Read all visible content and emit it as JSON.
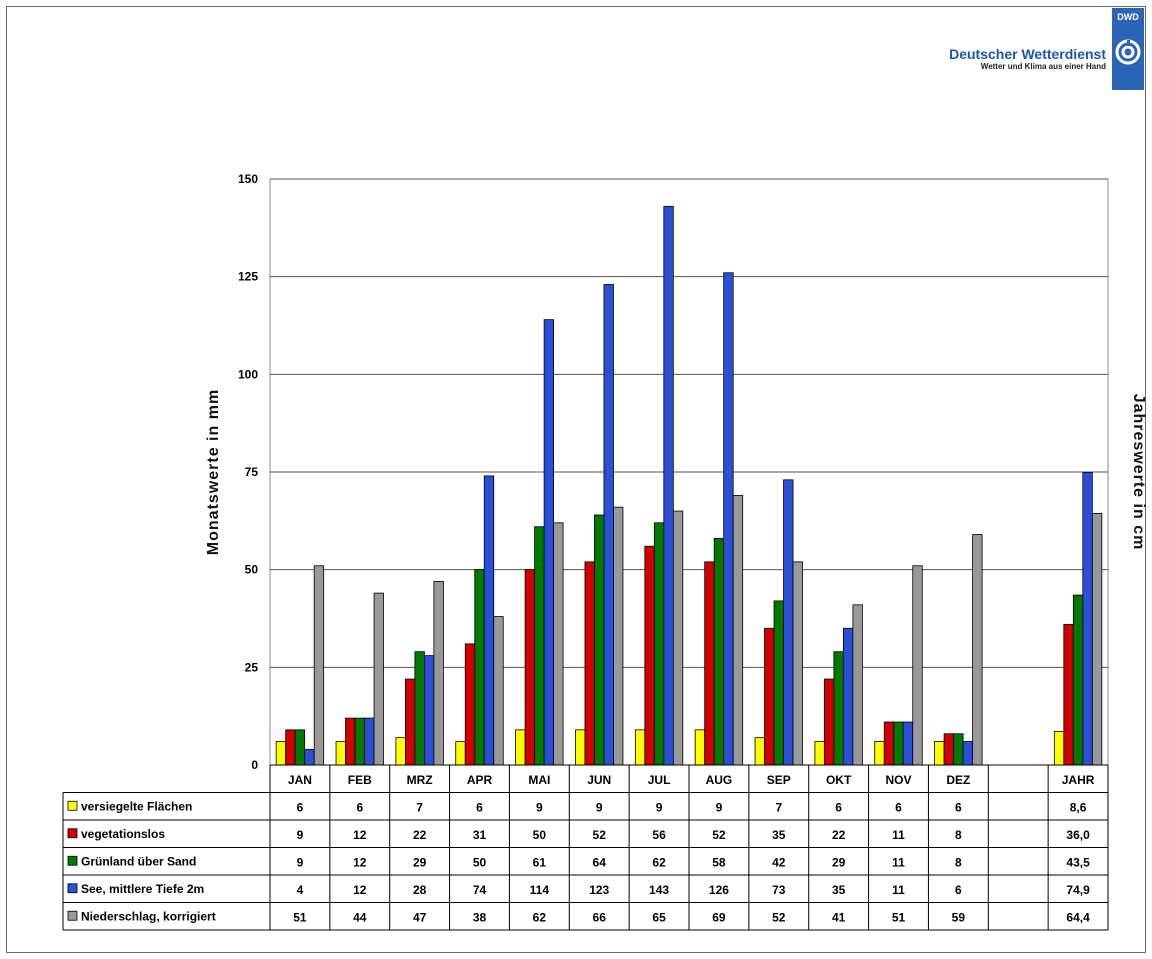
{
  "logo": {
    "abbr": "DWD",
    "title": "Deutscher Wetterdienst",
    "subtitle": "Wetter und Klima aus einer Hand",
    "color": "#2c64b8"
  },
  "chart_data": {
    "type": "bar",
    "title": "",
    "ylabel": "Monatswerte in mm",
    "ylabel_right": "Jahreswerte in cm",
    "ylim": [
      0,
      150
    ],
    "yticks": [
      0,
      25,
      50,
      75,
      100,
      125,
      150
    ],
    "grid": true,
    "categories": [
      "JAN",
      "FEB",
      "MRZ",
      "APR",
      "MAI",
      "JUN",
      "JUL",
      "AUG",
      "SEP",
      "OKT",
      "NOV",
      "DEZ",
      "",
      "JAHR"
    ],
    "series": [
      {
        "name": "versiegelte Flächen",
        "color": "#ffff00",
        "values": [
          6,
          6,
          7,
          6,
          9,
          9,
          9,
          9,
          7,
          6,
          6,
          6,
          null,
          8.6
        ],
        "labels": [
          "6",
          "6",
          "7",
          "6",
          "9",
          "9",
          "9",
          "9",
          "7",
          "6",
          "6",
          "6",
          "",
          "8,6"
        ]
      },
      {
        "name": "vegetationslos",
        "color": "#d00000",
        "values": [
          9,
          12,
          22,
          31,
          50,
          52,
          56,
          52,
          35,
          22,
          11,
          8,
          null,
          36.0
        ],
        "labels": [
          "9",
          "12",
          "22",
          "31",
          "50",
          "52",
          "56",
          "52",
          "35",
          "22",
          "11",
          "8",
          "",
          "36,0"
        ]
      },
      {
        "name": "Grünland über Sand",
        "color": "#007a00",
        "values": [
          9,
          12,
          29,
          50,
          61,
          64,
          62,
          58,
          42,
          29,
          11,
          8,
          null,
          43.5
        ],
        "labels": [
          "9",
          "12",
          "29",
          "50",
          "61",
          "64",
          "62",
          "58",
          "42",
          "29",
          "11",
          "8",
          "",
          "43,5"
        ]
      },
      {
        "name": "See, mittlere Tiefe  2m",
        "color": "#2b50d8",
        "values": [
          4,
          12,
          28,
          74,
          114,
          123,
          143,
          126,
          73,
          35,
          11,
          6,
          null,
          74.9
        ],
        "labels": [
          "4",
          "12",
          "28",
          "74",
          "114",
          "123",
          "143",
          "126",
          "73",
          "35",
          "11",
          "6",
          "",
          "74,9"
        ]
      },
      {
        "name": "Niederschlag, korrigiert",
        "color": "#999999",
        "values": [
          51,
          44,
          47,
          38,
          62,
          66,
          65,
          69,
          52,
          41,
          51,
          59,
          null,
          64.4
        ],
        "labels": [
          "51",
          "44",
          "47",
          "38",
          "62",
          "66",
          "65",
          "69",
          "52",
          "41",
          "51",
          "59",
          "",
          "64,4"
        ]
      }
    ]
  }
}
